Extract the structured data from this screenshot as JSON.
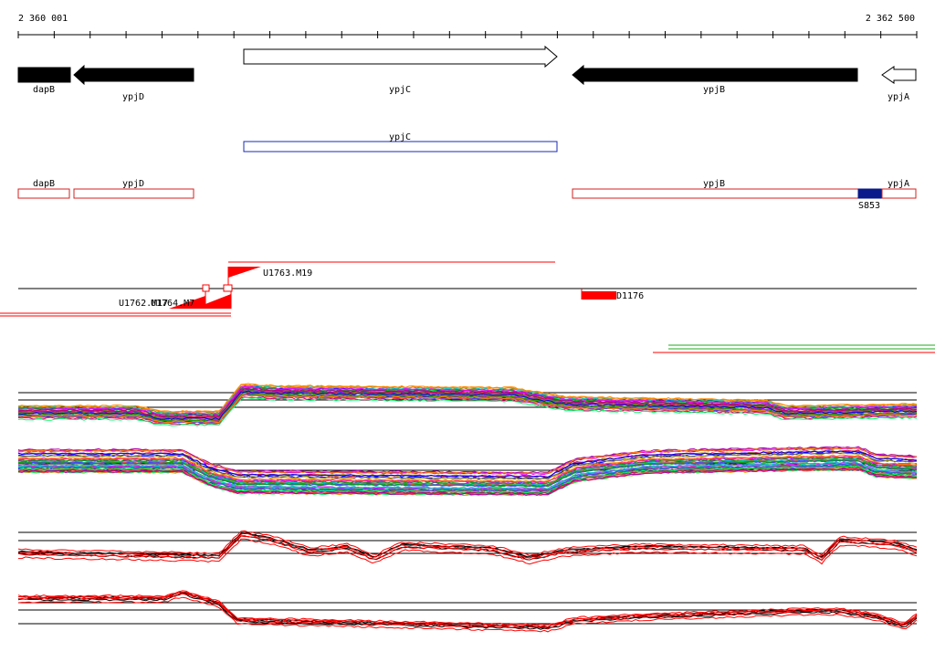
{
  "coords": {
    "start_label": "2 360 001",
    "end_label": "2 362 500"
  },
  "genes": [
    {
      "name": "dapB",
      "strand": "-",
      "filled": true
    },
    {
      "name": "ypjD",
      "strand": "-",
      "filled": true
    },
    {
      "name": "ypjC",
      "strand": "+",
      "filled": false
    },
    {
      "name": "ypjB",
      "strand": "-",
      "filled": true
    },
    {
      "name": "ypjA",
      "strand": "-",
      "filled": false
    }
  ],
  "blue_track": {
    "label": "ypjC",
    "color": "#1a2bb8"
  },
  "red_track": {
    "labels": [
      "dapB",
      "ypjD",
      "ypjB",
      "ypjA"
    ],
    "color": "#d42020",
    "site": {
      "label": "S853",
      "color": "#0a1a8a"
    }
  },
  "features": {
    "u1763": "U1763.M19",
    "u1762": "U1762.M17",
    "u1764": "U1764.M7",
    "d1176": "D1176",
    "color": "#ff0000"
  },
  "expression_panels": {
    "panel_count": 4,
    "colors": {
      "forward": "#ff0000",
      "reverse": "#000000",
      "extra": "#22aa22"
    }
  }
}
